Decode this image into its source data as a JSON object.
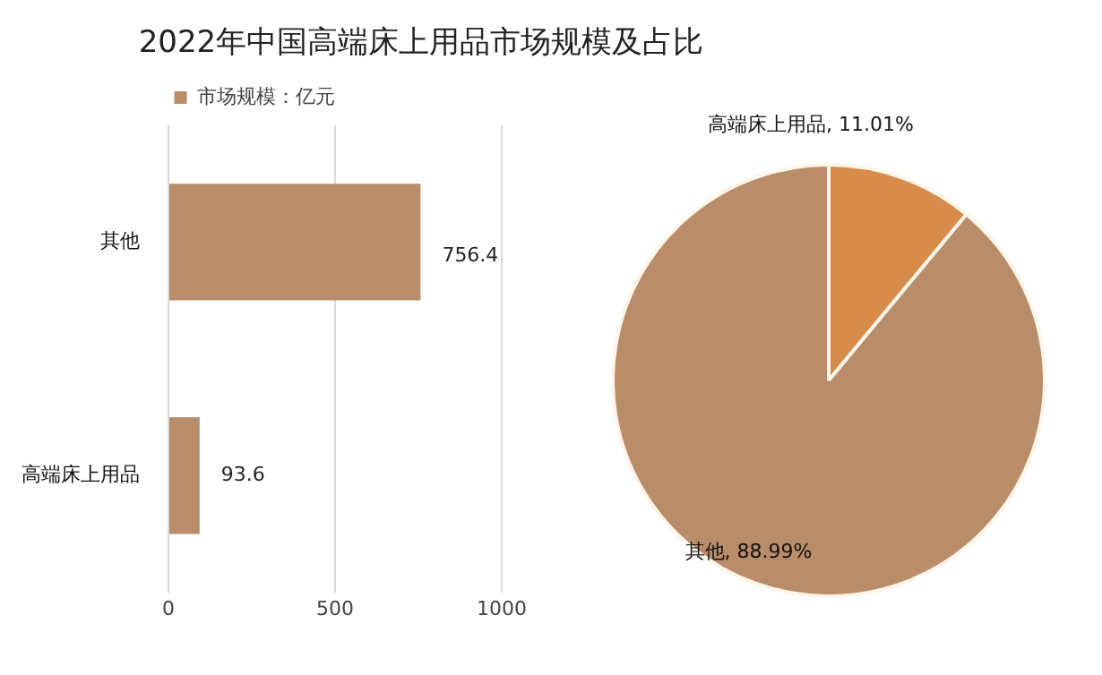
{
  "chart_data": [
    {
      "type": "bar",
      "title": "2022年中国高端床上用品市场规模及占比",
      "orientation": "horizontal",
      "categories": [
        "其他",
        "高端床上用品"
      ],
      "series": [
        {
          "name": "市场规模：亿元",
          "color": "#b98c6a",
          "values": [
            756.4,
            93.6
          ]
        }
      ],
      "xlim": [
        0,
        1000
      ],
      "xticks": [
        0,
        500,
        1000
      ],
      "grid": "x",
      "legend": "top",
      "data_labels": true
    },
    {
      "type": "pie",
      "categories": [
        "高端床上用品",
        "其他"
      ],
      "values": [
        11.01,
        88.99
      ],
      "colors": [
        "#d88c4c",
        "#b98c6a"
      ],
      "value_labels": [
        "11.01%",
        "88.99%"
      ]
    }
  ]
}
